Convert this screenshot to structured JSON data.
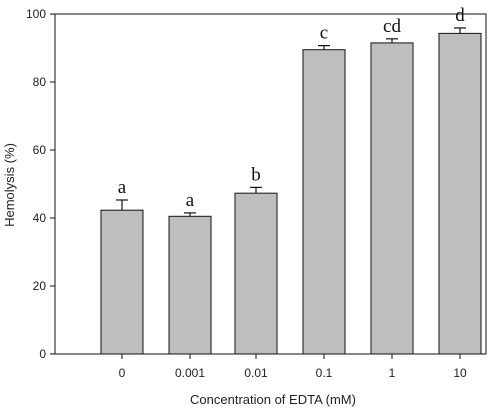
{
  "chart_data": {
    "type": "bar",
    "title": "",
    "xlabel": "Concentration of EDTA (mM)",
    "ylabel": "Hemolysis (%)",
    "categories": [
      "0",
      "0.001",
      "0.01",
      "0.1",
      "1",
      "10"
    ],
    "values": [
      42.3,
      40.5,
      47.3,
      89.5,
      91.5,
      94.3
    ],
    "errors": [
      3.0,
      1.0,
      1.7,
      1.2,
      1.2,
      1.6
    ],
    "significance_letters": [
      "a",
      "a",
      "b",
      "c",
      "cd",
      "d"
    ],
    "ylim": [
      0,
      100
    ],
    "yticks": [
      0,
      20,
      40,
      60,
      80,
      100
    ],
    "grid": false,
    "bar_color": "#bebebe",
    "edge_color": "#111111"
  }
}
